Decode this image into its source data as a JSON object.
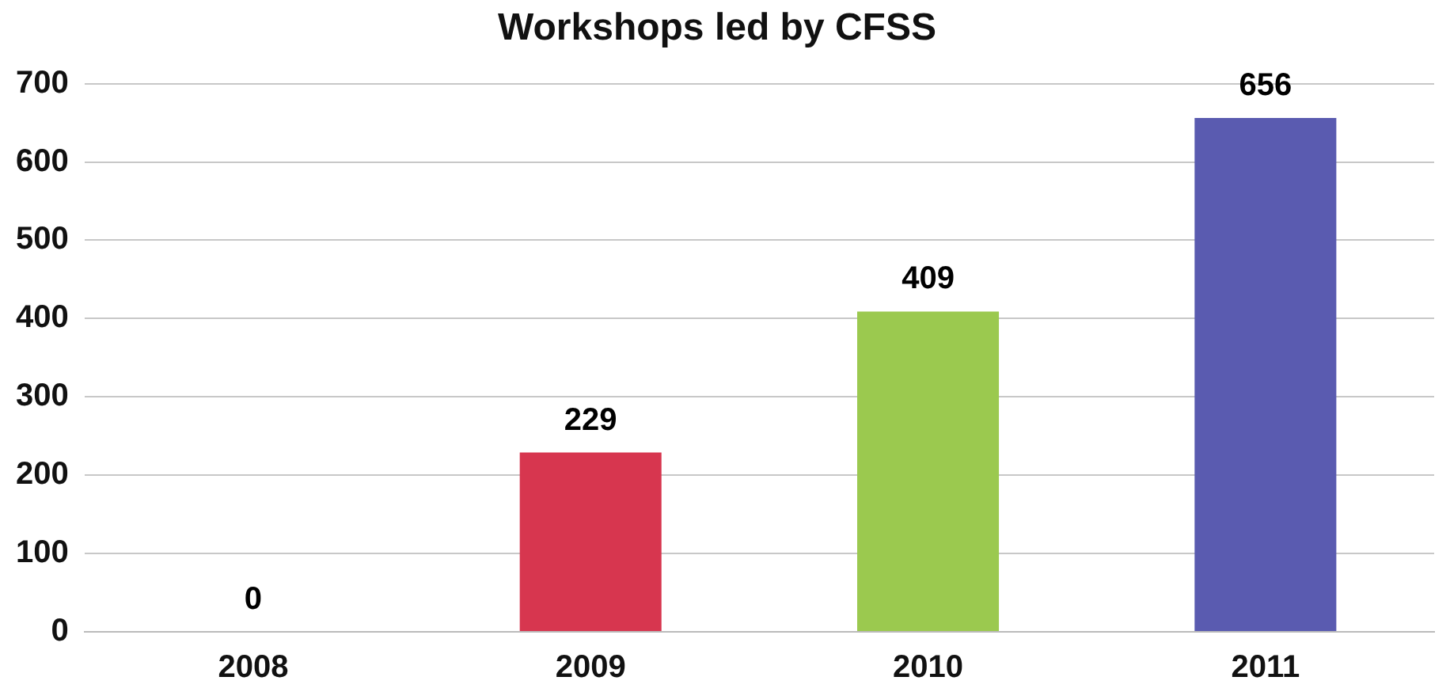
{
  "chart_data": {
    "type": "bar",
    "title": "Workshops led by CFSS",
    "categories": [
      "2008",
      "2009",
      "2010",
      "2011"
    ],
    "values": [
      0,
      229,
      409,
      656
    ],
    "colors": [
      "#c0504d",
      "#d7364f",
      "#9bc94f",
      "#5a5bb0"
    ],
    "ylim": [
      0,
      700
    ],
    "yticks": [
      0,
      100,
      200,
      300,
      400,
      500,
      600,
      700
    ],
    "grid": "y",
    "data_labels": true,
    "legend": false
  }
}
